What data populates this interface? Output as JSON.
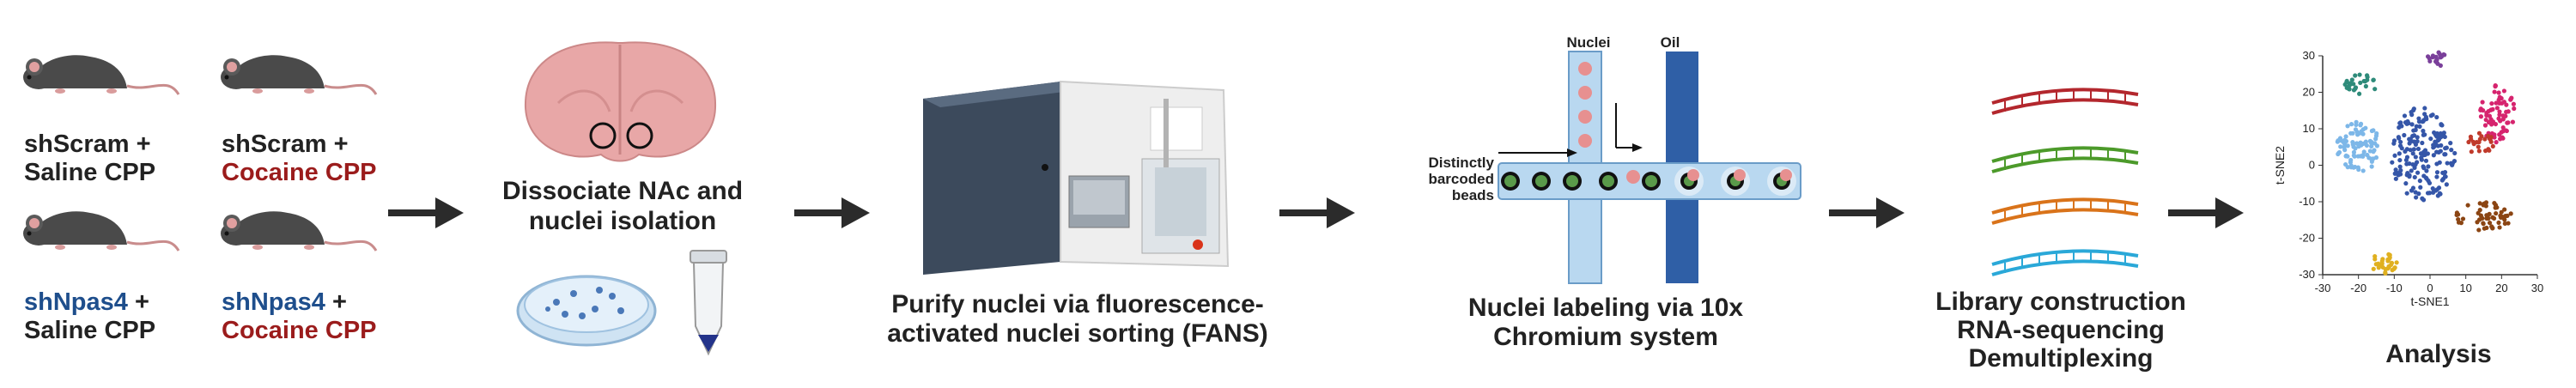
{
  "conditions": [
    {
      "prefix": "shScram +",
      "treatment": "Saline CPP",
      "prefix_color": "#222222",
      "treatment_color": "#222222"
    },
    {
      "prefix": "shScram +",
      "treatment": "Cocaine CPP",
      "prefix_color": "#222222",
      "treatment_color": "#9b1c1c"
    },
    {
      "prefix_name": "shNpas4",
      "prefix_plus": " +",
      "treatment": "Saline CPP",
      "prefix_color": "#1e4e8c",
      "treatment_color": "#222222"
    },
    {
      "prefix_name": "shNpas4",
      "prefix_plus": " +",
      "treatment": "Cocaine CPP",
      "prefix_color": "#1e4e8c",
      "treatment_color": "#9b1c1c"
    }
  ],
  "steps": {
    "dissociate": {
      "line1": "Dissociate NAc and",
      "line2": "nuclei isolation"
    },
    "fans": {
      "line1": "Purify nuclei via fluorescence-",
      "line2": "activated nuclei sorting (FANS)"
    },
    "chromium": {
      "line1": "Nuclei labeling via 10x",
      "line2": "Chromium system",
      "nuclei_label": "Nuclei",
      "oil_label": "Oil",
      "beads_line1": "Distinctly",
      "beads_line2": "barcoded",
      "beads_line3": "beads"
    },
    "library": {
      "line1": "Library construction",
      "line2": "RNA-sequencing",
      "line3": "Demultiplexing"
    },
    "analysis": {
      "label": "Analysis"
    }
  },
  "tsne": {
    "xlabel": "t-SNE1",
    "ylabel": "t-SNE2",
    "xticks": [
      "-30",
      "-20",
      "-10",
      "0",
      "10",
      "20",
      "30"
    ],
    "yticks": [
      "30",
      "20",
      "10",
      "0",
      "-10",
      "-20",
      "-30"
    ]
  },
  "colors": {
    "arrow": "#2b2b2b",
    "mouse": "#4a4a4a",
    "brain": "#e8a7a7",
    "channel_light": "#b9d8f0",
    "channel_dark": "#2f5fa6",
    "dna_red": "#b3272d",
    "dna_green": "#4c9a2a",
    "dna_orange": "#d9731a",
    "dna_blue": "#2aa8d8",
    "clusters": [
      "#2e8b7a",
      "#7db7e8",
      "#3556a8",
      "#7a3f9a",
      "#d6246e",
      "#c03a2b",
      "#8b4513",
      "#e0b020"
    ]
  }
}
